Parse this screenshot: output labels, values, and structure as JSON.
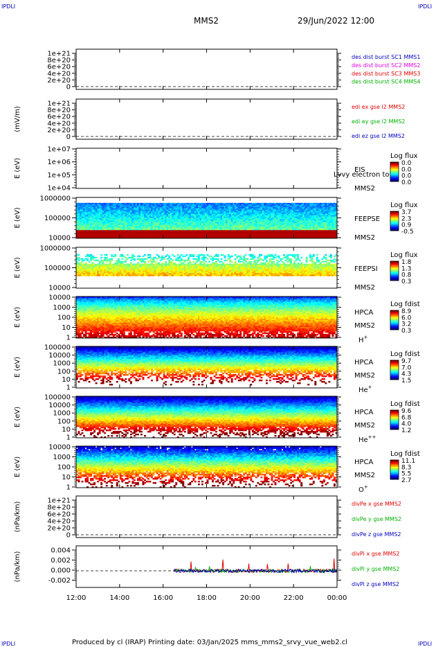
{
  "corner_label": "IPDLI",
  "header": {
    "spacecraft": "MMS2",
    "datetime": "29/Jun/2022 12:00"
  },
  "footer": {
    "text": "Produced by cl (IRAP)   Printing date: 03/Jan/2025   mms_mms2_srvy_vue_web2.cl"
  },
  "overlay_text": "Lvvy electron to",
  "colors": {
    "red": "#e00000",
    "green": "#00b000",
    "blue": "#0000c0",
    "magenta": "#e000e0"
  },
  "chart_data": [
    {
      "type": "line",
      "panel": "des-dist",
      "ylabel": "",
      "yticks": [
        "1e+21",
        "8e+20",
        "6e+20",
        "4e+20",
        "2e+20",
        "0"
      ],
      "ylim": [
        0,
        1e+21
      ],
      "legend": [
        {
          "label": "des dist burst SC1 MMS1",
          "color": "#0000c0"
        },
        {
          "label": "des dist burst SC2 MMS2",
          "color": "#e000e0"
        },
        {
          "label": "des dist burst SC3 MMS3",
          "color": "#e00000"
        },
        {
          "label": "des dist burst SC4 MMS4",
          "color": "#00b000"
        }
      ]
    },
    {
      "type": "line",
      "panel": "edi-e",
      "ylabel": "(mV/m)",
      "yticks": [
        "1e+21",
        "8e+20",
        "6e+20",
        "4e+20",
        "2e+20",
        "0"
      ],
      "ylim": [
        0,
        1e+21
      ],
      "legend": [
        {
          "label": "edi ex gse l2 MMS2",
          "color": "#e00000"
        },
        {
          "label": "edi ey gse l2 MMS2",
          "color": "#00b000"
        },
        {
          "label": "edi ez gse l2 MMS2",
          "color": "#0000c0"
        }
      ]
    },
    {
      "type": "heatmap",
      "panel": "eis",
      "ylabel": "E (eV)",
      "yticks": [
        "1e+07",
        "1e+06",
        "1e+05",
        "1e+04"
      ],
      "ylim": [
        10000.0,
        10000000.0
      ],
      "log": true,
      "labels": [
        "EIS",
        "MMS2"
      ],
      "cbar_title": "Log flux",
      "cbar_ticks": [
        "0.0",
        "0.0",
        "0.0",
        "0.0"
      ]
    },
    {
      "type": "heatmap",
      "panel": "feeps-e",
      "ylabel": "E (eV)",
      "yticks": [
        "1000000",
        "100000",
        "10000"
      ],
      "ylim": [
        10000.0,
        1000000.0
      ],
      "log": true,
      "labels": [
        "FEEPSE",
        "MMS2"
      ],
      "cbar_title": "Log flux",
      "cbar_ticks": [
        "3.7",
        "2.3",
        "0.9",
        "-0.5"
      ]
    },
    {
      "type": "heatmap",
      "panel": "feeps-i",
      "ylabel": "E (eV)",
      "yticks": [
        "1000000",
        "100000",
        "10000"
      ],
      "ylim": [
        10000.0,
        1000000.0
      ],
      "log": true,
      "labels": [
        "FEEPSI",
        "MMS2"
      ],
      "cbar_title": "Log flux",
      "cbar_ticks": [
        "1.8",
        "1.3",
        "0.8",
        "0.3"
      ]
    },
    {
      "type": "heatmap",
      "panel": "hpca-h",
      "ylabel": "E (eV)",
      "yticks": [
        "10000",
        "1000",
        "100",
        "10",
        "1"
      ],
      "ylim": [
        1,
        30000
      ],
      "log": true,
      "labels": [
        "HPCA",
        "MMS2",
        "H"
      ],
      "sup": "+",
      "cbar_title": "Log fdist",
      "cbar_ticks": [
        "8.9",
        "6.0",
        "3.2",
        "0.3"
      ]
    },
    {
      "type": "heatmap",
      "panel": "hpca-he",
      "ylabel": "E (eV)",
      "yticks": [
        "100000",
        "10000",
        "1000",
        "100",
        "10",
        "1"
      ],
      "ylim": [
        1,
        100000
      ],
      "log": true,
      "labels": [
        "HPCA",
        "MMS2",
        "He"
      ],
      "sup": "+",
      "cbar_title": "Log fdist",
      "cbar_ticks": [
        "9.7",
        "7.0",
        "4.3",
        "1.5"
      ]
    },
    {
      "type": "heatmap",
      "panel": "hpca-he2",
      "ylabel": "E (eV)",
      "yticks": [
        "100000",
        "10000",
        "1000",
        "100",
        "10",
        "1"
      ],
      "ylim": [
        1,
        100000
      ],
      "log": true,
      "labels": [
        "HPCA",
        "MMS2",
        "He"
      ],
      "sup": "++",
      "cbar_title": "Log fdist",
      "cbar_ticks": [
        "9.6",
        "6.8",
        "4.0",
        "1.2"
      ]
    },
    {
      "type": "heatmap",
      "panel": "hpca-o",
      "ylabel": "E (eV)",
      "yticks": [
        "10000",
        "1000",
        "100",
        "10",
        "1"
      ],
      "ylim": [
        1,
        30000
      ],
      "log": true,
      "labels": [
        "HPCA",
        "MMS2",
        "O"
      ],
      "sup": "+",
      "cbar_title": "Log fdist",
      "cbar_ticks": [
        "11.1",
        "8.3",
        "5.5",
        "2.7"
      ]
    },
    {
      "type": "line",
      "panel": "divpe",
      "ylabel": "(nPa/km)",
      "yticks": [
        "1e+21",
        "8e+20",
        "6e+20",
        "4e+20",
        "2e+20",
        "0"
      ],
      "ylim": [
        0,
        1e+21
      ],
      "legend": [
        {
          "label": "divPe x gse MMS2",
          "color": "#e00000"
        },
        {
          "label": "divPe y gse MMS2",
          "color": "#00b000"
        },
        {
          "label": "divPe z gse MMS2",
          "color": "#0000c0"
        }
      ]
    },
    {
      "type": "line",
      "panel": "divpi",
      "ylabel": "(nPa/km)",
      "yticks": [
        "0.004",
        "0.002",
        "0.000",
        "-0.002"
      ],
      "ylim": [
        -0.003,
        0.0045
      ],
      "legend": [
        {
          "label": "divPi x gse MMS2",
          "color": "#e00000"
        },
        {
          "label": "divPi y gse MMS2",
          "color": "#00b000"
        },
        {
          "label": "divPi z gse MMS2",
          "color": "#0000c0"
        }
      ],
      "data_start": "16:30"
    }
  ],
  "time_axis": {
    "ticks": [
      "12:00",
      "14:00",
      "16:00",
      "18:00",
      "20:00",
      "22:00",
      "00:00"
    ]
  }
}
